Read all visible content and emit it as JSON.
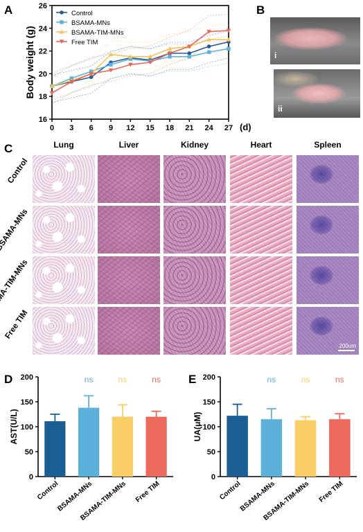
{
  "panel_labels": {
    "A": "A",
    "B": "B",
    "C": "C",
    "D": "D",
    "E": "E"
  },
  "panel_b": {
    "photo1_label": "i",
    "photo2_label": "ii"
  },
  "panel_c": {
    "columns": [
      "Lung",
      "Liver",
      "Kidney",
      "Heart",
      "Spleen"
    ],
    "rows": [
      "Control",
      "BSAMA-MNs",
      "BSAMA-TIM-MNs",
      "Free TIM"
    ],
    "scale_bar": "200um"
  },
  "chart_data": [
    {
      "type": "line",
      "xlabel": "(d)",
      "ylabel": "Body weight (g)",
      "x": [
        0,
        3,
        6,
        9,
        12,
        15,
        18,
        21,
        24,
        27
      ],
      "xlim": [
        0,
        27
      ],
      "ylim": [
        16,
        26
      ],
      "yticks": [
        16,
        18,
        20,
        22,
        24,
        26
      ],
      "legend_position": "top-left",
      "series": [
        {
          "name": "Control",
          "color": "#2a5a95",
          "marker": "circle",
          "values": [
            18.9,
            19.3,
            19.7,
            21.0,
            21.4,
            21.2,
            21.8,
            21.8,
            22.4,
            22.8
          ]
        },
        {
          "name": "BSAMA-MNs",
          "color": "#5ab2dd",
          "marker": "square",
          "values": [
            18.9,
            19.6,
            20.2,
            20.8,
            21.3,
            21.1,
            21.5,
            21.5,
            21.9,
            22.2
          ]
        },
        {
          "name": "BSAMA-TIM-MNs",
          "color": "#f9c254",
          "marker": "triangle",
          "values": [
            18.9,
            19.4,
            20.0,
            21.7,
            21.5,
            21.5,
            22.2,
            22.4,
            23.0,
            23.0
          ]
        },
        {
          "name": "Free TIM",
          "color": "#e8675b",
          "marker": "inverted-triangle",
          "values": [
            18.3,
            19.3,
            20.0,
            20.3,
            20.8,
            21.0,
            21.8,
            22.4,
            23.7,
            23.8
          ]
        }
      ]
    },
    {
      "type": "bar",
      "ylabel": "AST(U/L)",
      "categories": [
        "Control",
        "BSAMA-MNs",
        "BSAMA-TIM-MNs",
        "Free TIM"
      ],
      "values": [
        111,
        138,
        120,
        120
      ],
      "errors": [
        14,
        24,
        24,
        11
      ],
      "colors": [
        "#1b5e94",
        "#5bb1da",
        "#fbcd66",
        "#ec6a5c"
      ],
      "significance": [
        "",
        "ns",
        "ns",
        "ns"
      ],
      "ylim": [
        0,
        200
      ],
      "yticks": [
        0,
        50,
        100,
        150,
        200
      ]
    },
    {
      "type": "bar",
      "ylabel": "UA(μM)",
      "categories": [
        "Control",
        "BSAMA-MNs",
        "BSAMA-TIM-MNs",
        "Free TIM"
      ],
      "values": [
        122,
        115,
        113,
        115
      ],
      "errors": [
        23,
        21,
        7,
        11
      ],
      "colors": [
        "#1b5e94",
        "#5bb1da",
        "#fbcd66",
        "#ec6a5c"
      ],
      "significance": [
        "",
        "ns",
        "ns",
        "ns"
      ],
      "ylim": [
        0,
        200
      ],
      "yticks": [
        0,
        50,
        100,
        150,
        200
      ]
    }
  ]
}
